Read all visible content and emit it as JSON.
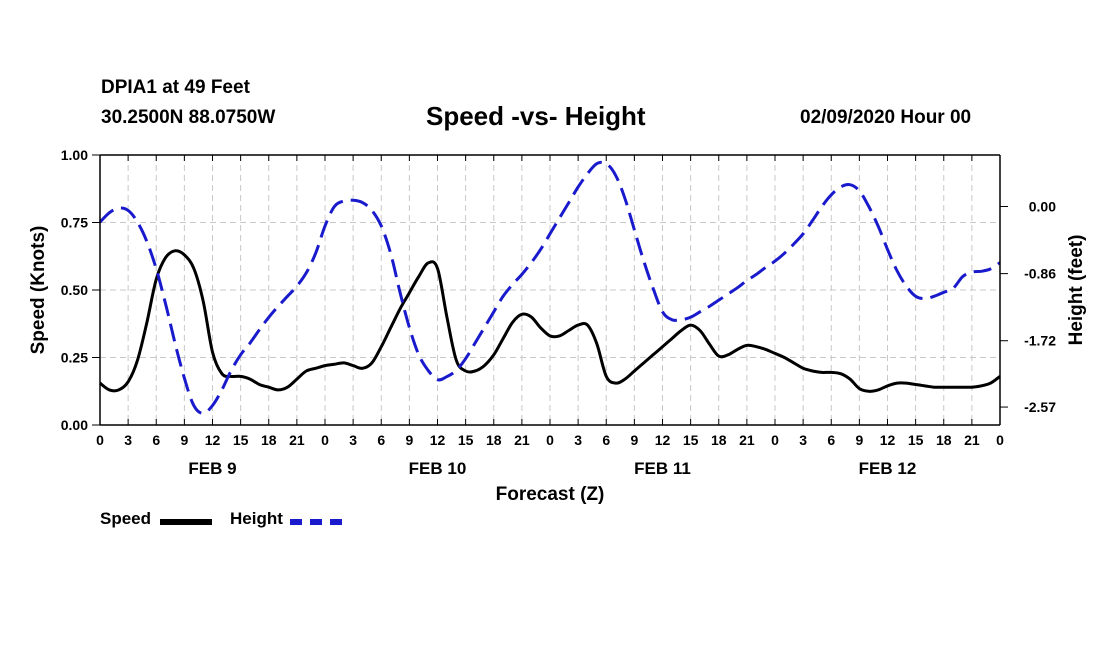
{
  "header": {
    "station": "DPIA1 at 49 Feet",
    "coords": "30.2500N 88.0750W",
    "title": "Speed -vs- Height",
    "issued": "02/09/2020 Hour 00"
  },
  "legend": {
    "speed_label": "Speed",
    "height_label": "Height"
  },
  "colors": {
    "speed": "#000000",
    "height": "#1a1acd",
    "grid": "#c8c8c8"
  },
  "chart_data": {
    "type": "line",
    "title": "Speed -vs- Height",
    "xlabel": "Forecast (Z)",
    "ylabel": "Speed (Knots)",
    "y2label": "Height (feet)",
    "xlim": [
      0,
      96
    ],
    "ylim": [
      0,
      1
    ],
    "y2lim": [
      -2.8,
      0.66
    ],
    "x_tick_labels": [
      "0",
      "3",
      "6",
      "9",
      "12",
      "15",
      "18",
      "21",
      "0",
      "3",
      "6",
      "9",
      "12",
      "15",
      "18",
      "21",
      "0",
      "3",
      "6",
      "9",
      "12",
      "15",
      "18",
      "21",
      "0",
      "3",
      "6",
      "9",
      "12",
      "15",
      "18",
      "21",
      "0"
    ],
    "x_tick_hours": [
      0,
      3,
      6,
      9,
      12,
      15,
      18,
      21,
      24,
      27,
      30,
      33,
      36,
      39,
      42,
      45,
      48,
      51,
      54,
      57,
      60,
      63,
      66,
      69,
      72,
      75,
      78,
      81,
      84,
      87,
      90,
      93,
      96
    ],
    "day_labels": [
      {
        "label": "FEB 9",
        "hour": 12
      },
      {
        "label": "FEB 10",
        "hour": 36
      },
      {
        "label": "FEB 11",
        "hour": 60
      },
      {
        "label": "FEB 12",
        "hour": 84
      }
    ],
    "y_ticks": [
      0,
      0.25,
      0.5,
      0.75,
      1
    ],
    "y_tick_labels": [
      "0.00",
      "0.25",
      "0.50",
      "0.75",
      "1.00"
    ],
    "y2_ticks": [
      0.0,
      -0.86,
      -1.72,
      -2.57
    ],
    "y2_tick_labels": [
      "0.00",
      "-0.86",
      "-1.72",
      "-2.57"
    ],
    "grid": true,
    "legend_position": "bottom-left",
    "series": [
      {
        "name": "Speed",
        "axis": "left",
        "style": "solid",
        "x": [
          0,
          1,
          2,
          3,
          4,
          5,
          6,
          7,
          8,
          9,
          10,
          11,
          12,
          13,
          14,
          15,
          16,
          17,
          18,
          19,
          20,
          21,
          22,
          23,
          24,
          25,
          26,
          27,
          28,
          29,
          30,
          31,
          32,
          33,
          34,
          35,
          36,
          37,
          38,
          39,
          40,
          41,
          42,
          43,
          44,
          45,
          46,
          47,
          48,
          49,
          50,
          51,
          52,
          53,
          54,
          55,
          56,
          57,
          58,
          59,
          60,
          61,
          62,
          63,
          64,
          65,
          66,
          67,
          68,
          69,
          70,
          71,
          72,
          73,
          74,
          75,
          76,
          77,
          78,
          79,
          80,
          81,
          82,
          83,
          84,
          85,
          86,
          87,
          88,
          89,
          90,
          91,
          92,
          93,
          94,
          95,
          96
        ],
        "values": [
          0.155,
          0.13,
          0.13,
          0.16,
          0.24,
          0.38,
          0.54,
          0.62,
          0.645,
          0.63,
          0.58,
          0.46,
          0.27,
          0.19,
          0.18,
          0.18,
          0.17,
          0.15,
          0.14,
          0.13,
          0.14,
          0.17,
          0.2,
          0.21,
          0.22,
          0.225,
          0.23,
          0.22,
          0.21,
          0.23,
          0.29,
          0.36,
          0.43,
          0.49,
          0.55,
          0.6,
          0.58,
          0.4,
          0.24,
          0.2,
          0.2,
          0.22,
          0.26,
          0.32,
          0.38,
          0.41,
          0.4,
          0.36,
          0.33,
          0.33,
          0.35,
          0.37,
          0.37,
          0.3,
          0.18,
          0.155,
          0.17,
          0.2,
          0.23,
          0.26,
          0.29,
          0.32,
          0.35,
          0.37,
          0.35,
          0.3,
          0.255,
          0.26,
          0.28,
          0.295,
          0.29,
          0.28,
          0.265,
          0.25,
          0.23,
          0.21,
          0.2,
          0.195,
          0.195,
          0.19,
          0.17,
          0.135,
          0.125,
          0.13,
          0.145,
          0.155,
          0.155,
          0.15,
          0.145,
          0.14,
          0.14,
          0.14,
          0.14,
          0.14,
          0.145,
          0.155,
          0.18
        ]
      },
      {
        "name": "Height",
        "axis": "right",
        "style": "dashed",
        "x": [
          0,
          1,
          2,
          3,
          4,
          5,
          6,
          7,
          8,
          9,
          10,
          11,
          12,
          13,
          14,
          15,
          16,
          17,
          18,
          19,
          20,
          21,
          22,
          23,
          24,
          25,
          26,
          27,
          28,
          29,
          30,
          31,
          32,
          33,
          34,
          35,
          36,
          37,
          38,
          39,
          40,
          41,
          42,
          43,
          44,
          45,
          46,
          47,
          48,
          49,
          50,
          51,
          52,
          53,
          54,
          55,
          56,
          57,
          58,
          59,
          60,
          61,
          62,
          63,
          64,
          65,
          66,
          67,
          68,
          69,
          70,
          71,
          72,
          73,
          74,
          75,
          76,
          77,
          78,
          79,
          80,
          81,
          82,
          83,
          84,
          85,
          86,
          87,
          88,
          89,
          90,
          91,
          92,
          93,
          94,
          95,
          96
        ],
        "values": [
          -0.2,
          -0.08,
          -0.02,
          -0.05,
          -0.2,
          -0.45,
          -0.8,
          -1.25,
          -1.75,
          -2.2,
          -2.55,
          -2.65,
          -2.55,
          -2.35,
          -2.1,
          -1.9,
          -1.75,
          -1.58,
          -1.42,
          -1.28,
          -1.15,
          -1.02,
          -0.85,
          -0.6,
          -0.25,
          0.0,
          0.07,
          0.08,
          0.05,
          -0.05,
          -0.25,
          -0.6,
          -1.1,
          -1.55,
          -1.9,
          -2.1,
          -2.22,
          -2.18,
          -2.1,
          -1.95,
          -1.75,
          -1.55,
          -1.35,
          -1.15,
          -1.0,
          -0.87,
          -0.72,
          -0.55,
          -0.35,
          -0.15,
          0.05,
          0.25,
          0.42,
          0.55,
          0.55,
          0.4,
          0.1,
          -0.3,
          -0.7,
          -1.05,
          -1.35,
          -1.45,
          -1.45,
          -1.42,
          -1.35,
          -1.28,
          -1.2,
          -1.12,
          -1.04,
          -0.95,
          -0.87,
          -0.78,
          -0.7,
          -0.6,
          -0.48,
          -0.35,
          -0.18,
          0.0,
          0.15,
          0.25,
          0.28,
          0.2,
          0.0,
          -0.25,
          -0.55,
          -0.82,
          -1.02,
          -1.15,
          -1.18,
          -1.15,
          -1.1,
          -1.05,
          -0.9,
          -0.84,
          -0.83,
          -0.8,
          -0.72
        ]
      }
    ]
  }
}
